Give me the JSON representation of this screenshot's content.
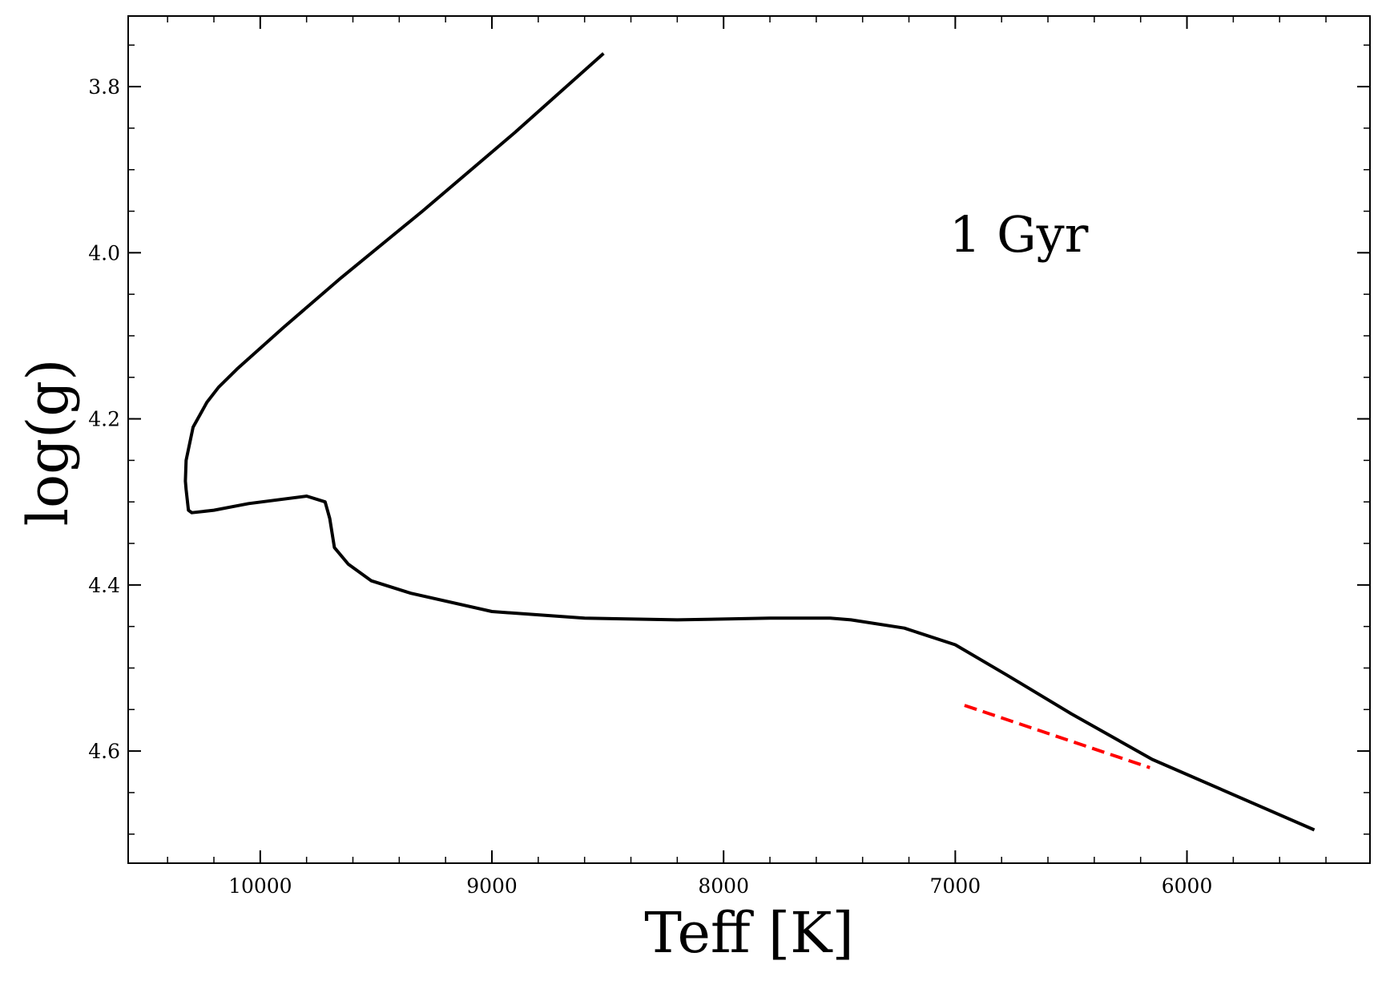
{
  "chart_data": {
    "type": "line",
    "xlabel": "Teff [K]",
    "ylabel": "log(g)",
    "xlim": [
      10570,
      5210
    ],
    "ylim": [
      4.735,
      3.715
    ],
    "x_ticks": [
      10000,
      9000,
      8000,
      7000,
      6000
    ],
    "y_ticks": [
      3.8,
      4.0,
      4.2,
      4.4,
      4.6
    ],
    "x_minor_step": 200,
    "y_minor_step": 0.05,
    "x_reversed": true,
    "y_reversed": true,
    "grid": false,
    "annotation": "1 Gyr",
    "series": [
      {
        "color": "#000000",
        "dash": "solid",
        "points": [
          [
            8518,
            3.76
          ],
          [
            8900,
            3.855
          ],
          [
            9300,
            3.95
          ],
          [
            9650,
            4.03
          ],
          [
            9900,
            4.09
          ],
          [
            10100,
            4.14
          ],
          [
            10180,
            4.162
          ],
          [
            10230,
            4.18
          ],
          [
            10290,
            4.21
          ],
          [
            10320,
            4.25
          ],
          [
            10323,
            4.275
          ],
          [
            10320,
            4.285
          ],
          [
            10310,
            4.31
          ],
          [
            10295,
            4.313
          ],
          [
            10200,
            4.31
          ],
          [
            10050,
            4.302
          ],
          [
            9800,
            4.293
          ],
          [
            9720,
            4.3
          ],
          [
            9700,
            4.32
          ],
          [
            9680,
            4.355
          ],
          [
            9620,
            4.375
          ],
          [
            9520,
            4.395
          ],
          [
            9350,
            4.41
          ],
          [
            9000,
            4.432
          ],
          [
            8600,
            4.44
          ],
          [
            8200,
            4.442
          ],
          [
            7800,
            4.44
          ],
          [
            7540,
            4.44
          ],
          [
            7450,
            4.442
          ],
          [
            7220,
            4.452
          ],
          [
            7000,
            4.472
          ],
          [
            6780,
            4.508
          ],
          [
            6500,
            4.555
          ],
          [
            6150,
            4.61
          ],
          [
            5450,
            4.695
          ]
        ]
      },
      {
        "color": "#ff0000",
        "dash": "dashed",
        "points": [
          [
            6960,
            4.545
          ],
          [
            6160,
            4.62
          ]
        ]
      }
    ]
  }
}
